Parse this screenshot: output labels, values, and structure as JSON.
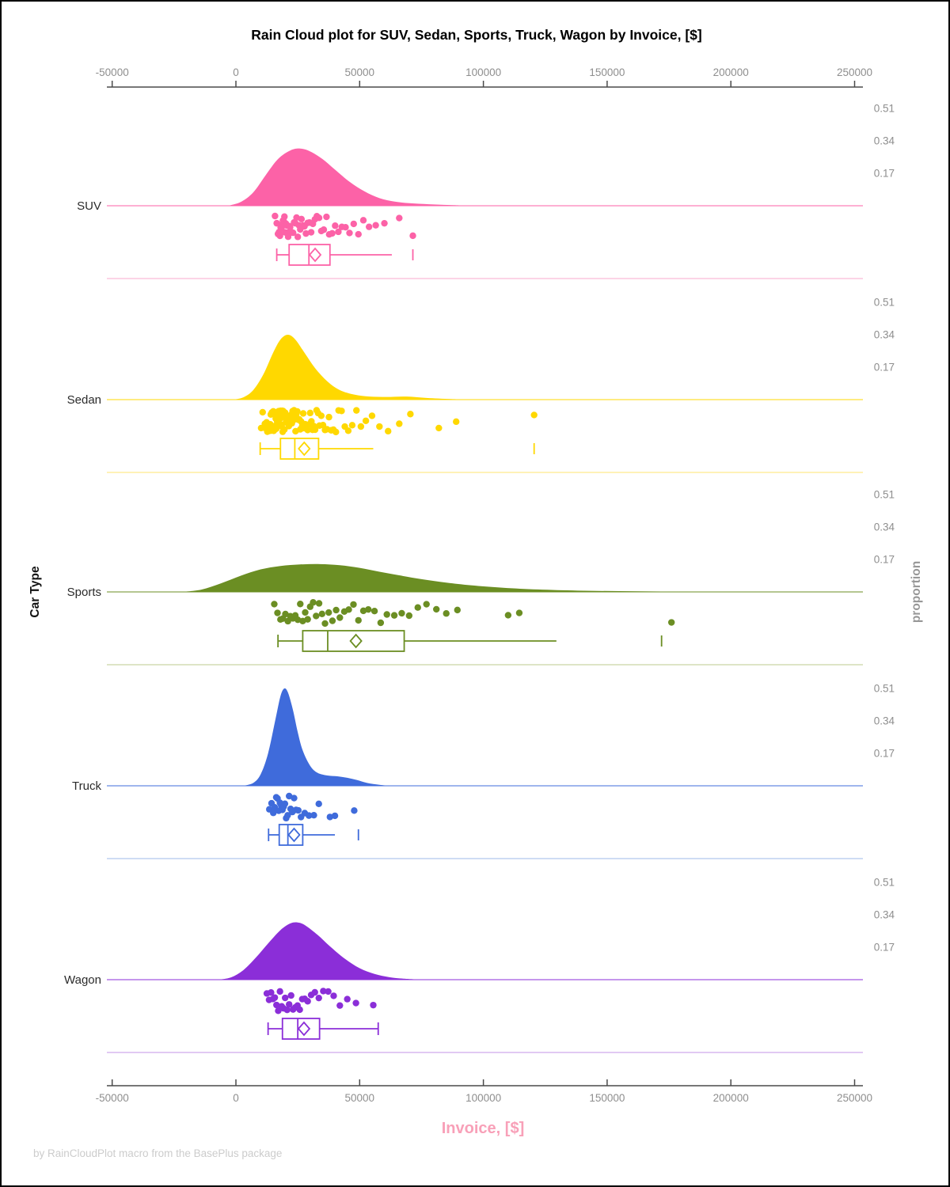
{
  "page": {
    "footer": "by RainCloudPlot macro from the BasePlus package"
  },
  "chart_data": {
    "type": "raincloud (half-violin + jittered points + box plot)",
    "title": "Rain Cloud plot for SUV, Sedan, Sports, Truck, Wagon by Invoice, [$]",
    "xlabel": "Invoice, [$]",
    "ylabel_left": "Car Type",
    "ylabel_right": "proportion",
    "x_ticks": [
      -50000,
      0,
      50000,
      100000,
      150000,
      200000,
      250000
    ],
    "xlim": [
      -53000,
      257000
    ],
    "proportion_ticks": [
      0.17,
      0.34,
      0.51
    ],
    "legend": "none",
    "grid": "off",
    "panels": [
      {
        "category": "SUV",
        "color": "#fc62a7",
        "separator_color": "#fbbbd8",
        "density": [
          [
            -3000,
            0
          ],
          [
            2000,
            0.02
          ],
          [
            7000,
            0.07
          ],
          [
            12000,
            0.16
          ],
          [
            17000,
            0.245
          ],
          [
            22000,
            0.29
          ],
          [
            26000,
            0.3
          ],
          [
            30000,
            0.285
          ],
          [
            35000,
            0.245
          ],
          [
            40000,
            0.19
          ],
          [
            46000,
            0.125
          ],
          [
            52000,
            0.075
          ],
          [
            58000,
            0.04
          ],
          [
            65000,
            0.02
          ],
          [
            72000,
            0.012
          ],
          [
            80000,
            0.007
          ],
          [
            88000,
            0.003
          ],
          [
            96000,
            0
          ]
        ],
        "points": [
          15800,
          16500,
          17000,
          17400,
          17800,
          18100,
          18400,
          18700,
          19000,
          19300,
          19600,
          19900,
          20200,
          20500,
          20800,
          21100,
          21500,
          21900,
          22300,
          22700,
          23100,
          23500,
          24000,
          24500,
          25000,
          25500,
          26000,
          26500,
          27100,
          27700,
          28300,
          29000,
          29700,
          30400,
          31100,
          31900,
          32700,
          33600,
          34500,
          35500,
          36600,
          37700,
          38900,
          40100,
          41400,
          42800,
          44300,
          45900,
          47600,
          49500,
          51500,
          53800,
          56500,
          60000,
          66000,
          71500
        ],
        "box": {
          "whisker_low": 16500,
          "q1": 21500,
          "median": 29500,
          "q3": 38000,
          "whisker_high": 63000,
          "mean": 32000,
          "outliers": [
            71500
          ],
          "right_cap": false
        }
      },
      {
        "category": "Sedan",
        "color": "#ffd800",
        "separator_color": "#ffea8c",
        "density": [
          [
            -1000,
            0
          ],
          [
            3000,
            0.012
          ],
          [
            7000,
            0.05
          ],
          [
            11000,
            0.13
          ],
          [
            15000,
            0.245
          ],
          [
            18000,
            0.315
          ],
          [
            21000,
            0.34
          ],
          [
            24000,
            0.315
          ],
          [
            28000,
            0.24
          ],
          [
            32000,
            0.165
          ],
          [
            37000,
            0.095
          ],
          [
            42000,
            0.05
          ],
          [
            48000,
            0.026
          ],
          [
            54000,
            0.016
          ],
          [
            61000,
            0.014
          ],
          [
            69000,
            0.016
          ],
          [
            77000,
            0.009
          ],
          [
            87000,
            0.003
          ],
          [
            97000,
            0
          ]
        ],
        "points": [
          10200,
          10800,
          11300,
          11700,
          12100,
          12400,
          12700,
          13000,
          13300,
          13500,
          13700,
          13900,
          14100,
          14300,
          14500,
          14700,
          14900,
          15100,
          15300,
          15500,
          15700,
          15900,
          16100,
          16300,
          16500,
          16700,
          16900,
          17100,
          17300,
          17500,
          17700,
          17900,
          18100,
          18300,
          18500,
          18700,
          18900,
          19100,
          19300,
          19600,
          19900,
          20200,
          20500,
          20800,
          21100,
          21400,
          21700,
          22000,
          22300,
          22600,
          22900,
          23200,
          23500,
          23800,
          24100,
          24400,
          24800,
          25200,
          25600,
          26000,
          26400,
          26800,
          27200,
          27600,
          28000,
          28500,
          29000,
          29500,
          30000,
          30500,
          31000,
          31500,
          32000,
          32600,
          33200,
          33800,
          34500,
          35200,
          36000,
          36800,
          37600,
          38500,
          39400,
          40400,
          41500,
          42700,
          44000,
          45400,
          47000,
          48700,
          50500,
          52500,
          55000,
          58000,
          61500,
          66000,
          70500,
          82000,
          89000,
          120500
        ],
        "box": {
          "whisker_low": 9800,
          "q1": 18000,
          "median": 23800,
          "q3": 33400,
          "whisker_high": 55500,
          "mean": 27600,
          "outliers": [
            120500
          ],
          "right_cap": false
        }
      },
      {
        "category": "Sports",
        "color": "#6b8e23",
        "separator_color": "#c9d5a4",
        "density": [
          [
            -22000,
            0
          ],
          [
            -14000,
            0.012
          ],
          [
            -6000,
            0.045
          ],
          [
            2000,
            0.085
          ],
          [
            10000,
            0.118
          ],
          [
            18000,
            0.136
          ],
          [
            26000,
            0.144
          ],
          [
            34000,
            0.146
          ],
          [
            42000,
            0.14
          ],
          [
            50000,
            0.126
          ],
          [
            58000,
            0.106
          ],
          [
            66000,
            0.087
          ],
          [
            75000,
            0.067
          ],
          [
            85000,
            0.049
          ],
          [
            95000,
            0.035
          ],
          [
            108000,
            0.022
          ],
          [
            122000,
            0.013
          ],
          [
            138000,
            0.007
          ],
          [
            155000,
            0.004
          ],
          [
            172000,
            0.002
          ],
          [
            190000,
            0
          ]
        ],
        "points": [
          15500,
          16800,
          18000,
          19000,
          20000,
          21000,
          22000,
          23000,
          24000,
          25000,
          26000,
          27000,
          28000,
          29000,
          30000,
          31200,
          32400,
          33600,
          34800,
          36000,
          37500,
          39000,
          40500,
          42000,
          43800,
          45600,
          47500,
          49500,
          51500,
          53500,
          56000,
          58500,
          61000,
          64000,
          67000,
          70000,
          73500,
          77000,
          81000,
          85000,
          89500,
          110000,
          114500,
          176000
        ],
        "box": {
          "whisker_low": 17000,
          "q1": 27000,
          "median": 37100,
          "q3": 68000,
          "whisker_high": 129500,
          "mean": 48500,
          "outliers": [
            172000
          ],
          "right_cap": false
        }
      },
      {
        "category": "Truck",
        "color": "#3f6bdb",
        "separator_color": "#b0c6ee",
        "density": [
          [
            3000,
            0
          ],
          [
            7000,
            0.015
          ],
          [
            10000,
            0.06
          ],
          [
            13000,
            0.17
          ],
          [
            16000,
            0.35
          ],
          [
            18000,
            0.47
          ],
          [
            19500,
            0.51
          ],
          [
            21000,
            0.49
          ],
          [
            23000,
            0.4
          ],
          [
            25000,
            0.28
          ],
          [
            27000,
            0.185
          ],
          [
            30000,
            0.105
          ],
          [
            33000,
            0.068
          ],
          [
            37000,
            0.054
          ],
          [
            41000,
            0.05
          ],
          [
            45000,
            0.042
          ],
          [
            49000,
            0.03
          ],
          [
            53000,
            0.015
          ],
          [
            58000,
            0.005
          ],
          [
            62000,
            0
          ]
        ],
        "points": [
          13500,
          14400,
          15100,
          15700,
          16300,
          16800,
          17300,
          17800,
          18300,
          18800,
          19300,
          19800,
          20300,
          20900,
          21500,
          22100,
          22800,
          23500,
          24300,
          25200,
          26300,
          27800,
          29500,
          31500,
          33500,
          38000,
          40000,
          47800
        ],
        "box": {
          "whisker_low": 13200,
          "q1": 17500,
          "median": 21000,
          "q3": 27000,
          "whisker_high": 40000,
          "mean": 23500,
          "outliers": [
            49500
          ],
          "right_cap": false
        }
      },
      {
        "category": "Wagon",
        "color": "#8b2ed8",
        "separator_color": "#cfa9ec",
        "density": [
          [
            -7000,
            0
          ],
          [
            -2000,
            0.012
          ],
          [
            3000,
            0.05
          ],
          [
            8000,
            0.115
          ],
          [
            13000,
            0.19
          ],
          [
            18000,
            0.26
          ],
          [
            22000,
            0.295
          ],
          [
            25000,
            0.3
          ],
          [
            28000,
            0.285
          ],
          [
            33000,
            0.235
          ],
          [
            38000,
            0.175
          ],
          [
            44000,
            0.11
          ],
          [
            50000,
            0.06
          ],
          [
            56000,
            0.03
          ],
          [
            62000,
            0.013
          ],
          [
            68000,
            0.005
          ],
          [
            75000,
            0
          ]
        ],
        "points": [
          12500,
          13400,
          14200,
          15000,
          15700,
          16400,
          17100,
          17800,
          18500,
          19200,
          19900,
          20700,
          21500,
          22300,
          23100,
          24000,
          24900,
          25800,
          26800,
          27800,
          29000,
          30400,
          31900,
          33500,
          35300,
          37300,
          39500,
          42000,
          45000,
          48500,
          55500
        ],
        "box": {
          "whisker_low": 13000,
          "q1": 18800,
          "median": 25000,
          "q3": 33800,
          "whisker_high": 57500,
          "mean": 27500,
          "outliers": [],
          "right_cap": true
        }
      }
    ]
  }
}
